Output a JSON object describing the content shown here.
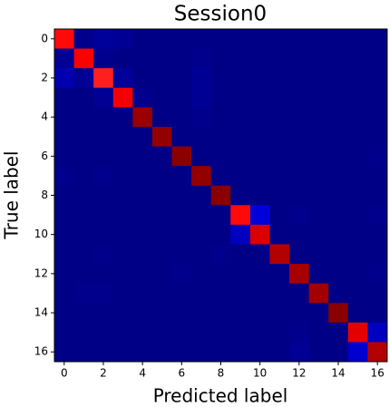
{
  "chart_data": {
    "type": "heatmap",
    "title": "Session0",
    "xlabel": "Predicted label",
    "ylabel": "True label",
    "colormap": "seismic",
    "zlim": [
      0,
      1
    ],
    "xlim": [
      -0.5,
      16.5
    ],
    "ylim": [
      16.5,
      -0.5
    ],
    "xticks": [
      0,
      2,
      4,
      6,
      8,
      10,
      12,
      14,
      16
    ],
    "yticks": [
      0,
      2,
      4,
      6,
      8,
      10,
      12,
      14,
      16
    ],
    "z": [
      [
        0.74,
        0.09,
        0.11,
        0.1,
        0.08,
        0.08,
        0.08,
        0.08,
        0.08,
        0.08,
        0.08,
        0.08,
        0.08,
        0.08,
        0.08,
        0.08,
        0.08
      ],
      [
        0.1,
        0.76,
        0.09,
        0.08,
        0.08,
        0.08,
        0.08,
        0.09,
        0.08,
        0.08,
        0.08,
        0.08,
        0.08,
        0.08,
        0.08,
        0.08,
        0.08
      ],
      [
        0.14,
        0.1,
        0.72,
        0.11,
        0.08,
        0.08,
        0.08,
        0.1,
        0.08,
        0.08,
        0.08,
        0.08,
        0.08,
        0.08,
        0.08,
        0.08,
        0.08
      ],
      [
        0.08,
        0.08,
        0.1,
        0.77,
        0.09,
        0.08,
        0.08,
        0.1,
        0.08,
        0.08,
        0.08,
        0.08,
        0.08,
        0.08,
        0.08,
        0.08,
        0.08
      ],
      [
        0.08,
        0.08,
        0.08,
        0.08,
        0.95,
        0.08,
        0.08,
        0.09,
        0.08,
        0.08,
        0.08,
        0.08,
        0.08,
        0.08,
        0.08,
        0.08,
        0.08
      ],
      [
        0.08,
        0.08,
        0.08,
        0.08,
        0.08,
        0.96,
        0.08,
        0.08,
        0.08,
        0.08,
        0.08,
        0.08,
        0.08,
        0.08,
        0.08,
        0.08,
        0.08
      ],
      [
        0.08,
        0.08,
        0.08,
        0.08,
        0.08,
        0.08,
        0.98,
        0.08,
        0.08,
        0.08,
        0.08,
        0.08,
        0.08,
        0.08,
        0.08,
        0.08,
        0.09
      ],
      [
        0.09,
        0.08,
        0.09,
        0.08,
        0.08,
        0.08,
        0.08,
        0.96,
        0.08,
        0.08,
        0.08,
        0.08,
        0.08,
        0.08,
        0.08,
        0.08,
        0.08
      ],
      [
        0.08,
        0.08,
        0.08,
        0.08,
        0.08,
        0.08,
        0.08,
        0.08,
        0.98,
        0.08,
        0.08,
        0.08,
        0.08,
        0.08,
        0.08,
        0.08,
        0.08
      ],
      [
        0.08,
        0.08,
        0.08,
        0.08,
        0.08,
        0.08,
        0.08,
        0.08,
        0.08,
        0.74,
        0.2,
        0.08,
        0.09,
        0.08,
        0.08,
        0.08,
        0.09
      ],
      [
        0.08,
        0.08,
        0.08,
        0.08,
        0.08,
        0.08,
        0.08,
        0.08,
        0.08,
        0.16,
        0.82,
        0.08,
        0.08,
        0.08,
        0.08,
        0.08,
        0.08
      ],
      [
        0.08,
        0.08,
        0.09,
        0.08,
        0.08,
        0.08,
        0.08,
        0.08,
        0.09,
        0.08,
        0.08,
        0.9,
        0.08,
        0.08,
        0.08,
        0.08,
        0.08
      ],
      [
        0.08,
        0.08,
        0.08,
        0.08,
        0.08,
        0.08,
        0.09,
        0.08,
        0.08,
        0.08,
        0.08,
        0.08,
        0.92,
        0.08,
        0.08,
        0.08,
        0.09
      ],
      [
        0.08,
        0.09,
        0.09,
        0.08,
        0.08,
        0.08,
        0.08,
        0.08,
        0.08,
        0.08,
        0.08,
        0.08,
        0.08,
        0.93,
        0.08,
        0.08,
        0.08
      ],
      [
        0.08,
        0.08,
        0.08,
        0.08,
        0.08,
        0.08,
        0.08,
        0.08,
        0.08,
        0.08,
        0.08,
        0.08,
        0.08,
        0.08,
        0.98,
        0.08,
        0.08
      ],
      [
        0.08,
        0.08,
        0.08,
        0.08,
        0.08,
        0.08,
        0.08,
        0.08,
        0.08,
        0.08,
        0.08,
        0.08,
        0.09,
        0.08,
        0.08,
        0.8,
        0.16
      ],
      [
        0.08,
        0.08,
        0.08,
        0.08,
        0.08,
        0.08,
        0.08,
        0.08,
        0.08,
        0.08,
        0.08,
        0.08,
        0.1,
        0.08,
        0.08,
        0.18,
        0.9
      ]
    ]
  }
}
